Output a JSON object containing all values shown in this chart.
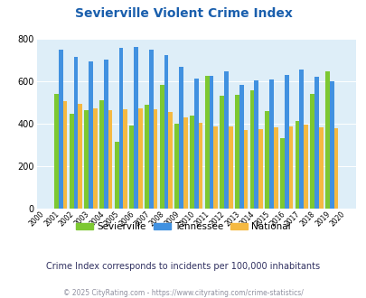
{
  "title": "Sevierville Violent Crime Index",
  "years": [
    2000,
    2001,
    2002,
    2003,
    2004,
    2005,
    2006,
    2007,
    2008,
    2009,
    2010,
    2011,
    2012,
    2013,
    2014,
    2015,
    2016,
    2017,
    2018,
    2019,
    2020
  ],
  "sevierville": [
    0,
    540,
    447,
    462,
    511,
    315,
    390,
    490,
    583,
    400,
    437,
    625,
    530,
    537,
    557,
    460,
    333,
    413,
    540,
    646,
    0
  ],
  "tennessee": [
    0,
    748,
    715,
    692,
    700,
    757,
    760,
    750,
    722,
    668,
    611,
    626,
    645,
    583,
    604,
    607,
    630,
    657,
    621,
    598,
    0
  ],
  "national": [
    0,
    506,
    494,
    472,
    463,
    469,
    474,
    468,
    455,
    429,
    404,
    387,
    387,
    368,
    376,
    381,
    387,
    394,
    383,
    379,
    0
  ],
  "sevierville_color": "#7dc832",
  "tennessee_color": "#4191e0",
  "national_color": "#f5b942",
  "bg_color": "#deeef8",
  "ylim": [
    0,
    800
  ],
  "yticks": [
    0,
    200,
    400,
    600,
    800
  ],
  "subtitle": "Crime Index corresponds to incidents per 100,000 inhabitants",
  "footer": "© 2025 CityRating.com - https://www.cityrating.com/crime-statistics/",
  "title_color": "#1a5fad",
  "subtitle_color": "#303060",
  "footer_color": "#9090a0"
}
